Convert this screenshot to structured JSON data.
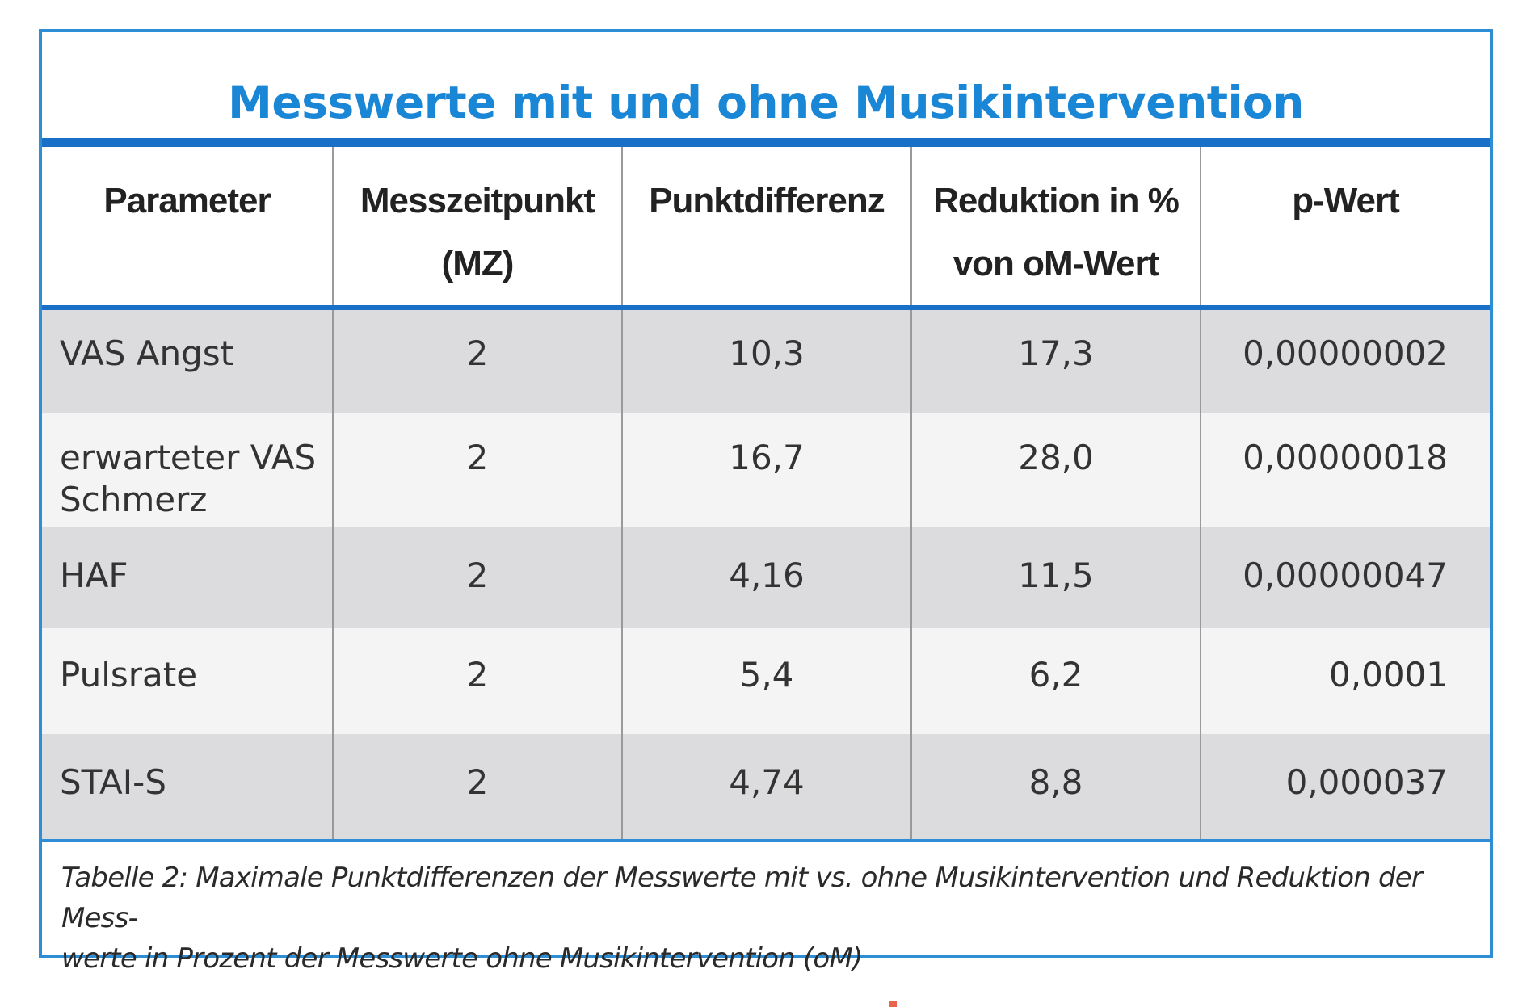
{
  "table": {
    "title": "Messwerte mit und ohne Musikintervention",
    "headers": [
      {
        "line1": "Parameter",
        "line2": ""
      },
      {
        "line1": "Messzeitpunkt",
        "line2": "(MZ)"
      },
      {
        "line1": "Punktdifferenz",
        "line2": ""
      },
      {
        "line1": "Reduktion in %",
        "line2": "von oM-Wert"
      },
      {
        "line1": "p-Wert",
        "line2": ""
      }
    ],
    "rows": [
      {
        "parameter_line1": "VAS Angst",
        "parameter_line2": "",
        "mz": "2",
        "punktdifferenz": "10,3",
        "reduktion": "17,3",
        "p_wert": "0,00000002"
      },
      {
        "parameter_line1": "erwarteter VAS",
        "parameter_line2": "Schmerz",
        "mz": "2",
        "punktdifferenz": "16,7",
        "reduktion": "28,0",
        "p_wert": "0,00000018"
      },
      {
        "parameter_line1": "HAF",
        "parameter_line2": "",
        "mz": "2",
        "punktdifferenz": "4,16",
        "reduktion": "11,5",
        "p_wert": "0,00000047"
      },
      {
        "parameter_line1": "Pulsrate",
        "parameter_line2": "",
        "mz": "2",
        "punktdifferenz": "5,4",
        "reduktion": "6,2",
        "p_wert": "0,0001"
      },
      {
        "parameter_line1": "STAI-S",
        "parameter_line2": "",
        "mz": "2",
        "punktdifferenz": "4,74",
        "reduktion": "8,8",
        "p_wert": "0,000037"
      }
    ],
    "caption_line1": "Tabelle 2: Maximale Punktdifferenzen der Messwerte mit vs. ohne Musikintervention und Reduktion der Mess-",
    "caption_line2": "werte in Prozent der Messwerte ohne Musikintervention (oM)"
  },
  "colors": {
    "accent_blue": "#1a86d6",
    "rule_blue": "#1a6fc6",
    "row_shade": "#dcdcde",
    "row_light": "#f4f4f4"
  }
}
